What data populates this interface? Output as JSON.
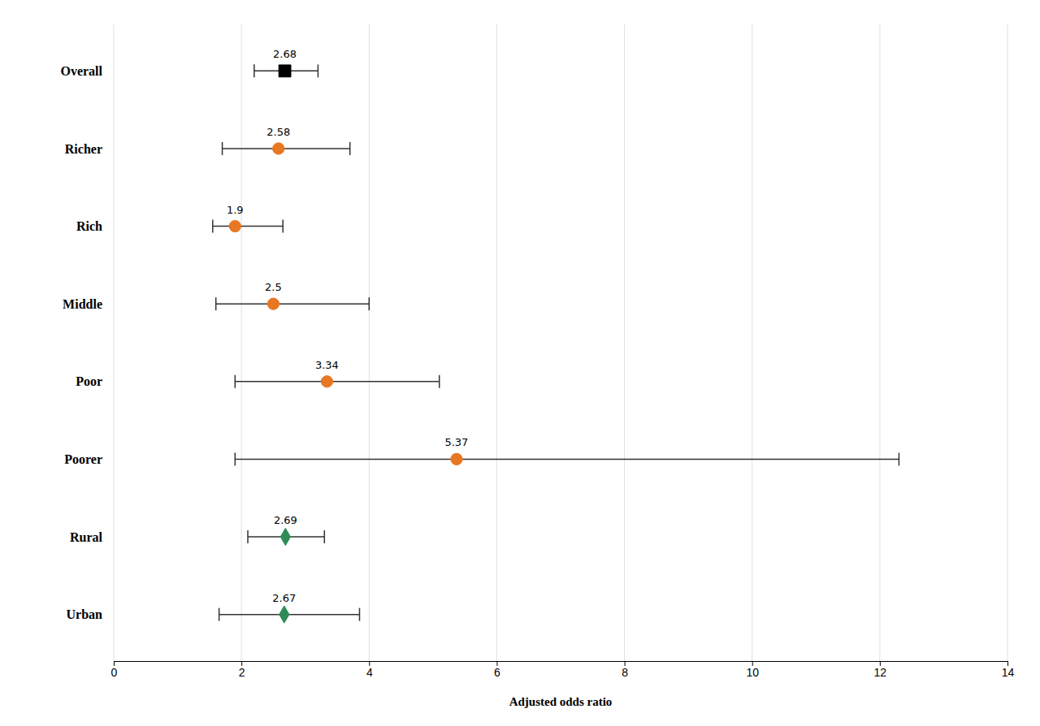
{
  "chart_data": {
    "type": "forest",
    "categories": [
      "Overall",
      "Richer",
      "Rich",
      "Middle",
      "Poor",
      "Poorer",
      "Rural",
      "Urban"
    ],
    "series": [
      {
        "color": "#000000",
        "marker": "square",
        "values": [
          2.68,
          null,
          null,
          null,
          null,
          null,
          null,
          null
        ],
        "ci_lower": [
          2.2,
          null,
          null,
          null,
          null,
          null,
          null,
          null
        ],
        "ci_upper": [
          3.2,
          null,
          null,
          null,
          null,
          null,
          null,
          null
        ]
      },
      {
        "color": "#E87722",
        "marker": "circle",
        "values": [
          null,
          2.58,
          1.9,
          2.5,
          3.34,
          5.37,
          null,
          null
        ],
        "ci_lower": [
          null,
          1.7,
          1.55,
          1.6,
          1.9,
          1.9,
          null,
          null
        ],
        "ci_upper": [
          null,
          3.7,
          2.65,
          4.0,
          5.1,
          12.3,
          null,
          null
        ]
      },
      {
        "color": "#2E8B57",
        "marker": "diamond",
        "values": [
          null,
          null,
          null,
          null,
          null,
          null,
          2.69,
          2.67
        ],
        "ci_lower": [
          null,
          null,
          null,
          null,
          null,
          null,
          2.1,
          1.65
        ],
        "ci_upper": [
          null,
          null,
          null,
          null,
          null,
          null,
          3.3,
          3.85
        ]
      }
    ],
    "xlabel": "Adjusted odds ratio",
    "xlim": [
      0,
      14
    ],
    "xticks": [
      0,
      2,
      4,
      6,
      8,
      10,
      12,
      14
    ],
    "grid": true,
    "data_labels": true
  }
}
